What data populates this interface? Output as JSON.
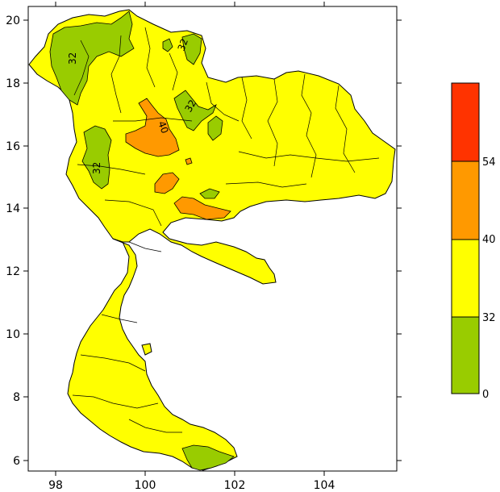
{
  "map": {
    "x_ticks": [
      "98",
      "100",
      "102",
      "104"
    ],
    "y_ticks": [
      "6",
      "8",
      "10",
      "12",
      "14",
      "16",
      "18",
      "20"
    ],
    "contour_labels": [
      "32",
      "32",
      "40",
      "32",
      "32"
    ]
  },
  "legend": {
    "bins": [
      {
        "range": "0-32",
        "color": "#99cc00"
      },
      {
        "range": "32-40",
        "color": "#ffff00"
      },
      {
        "range": "40-54",
        "color": "#ff9900"
      },
      {
        "range": "54+",
        "color": "#ff3300"
      }
    ],
    "labels": [
      "0",
      "32",
      "40",
      "54"
    ]
  },
  "colors": {
    "land": "#ffff00",
    "low": "#99cc00",
    "mid_high": "#ff9900",
    "high": "#ff3300"
  }
}
